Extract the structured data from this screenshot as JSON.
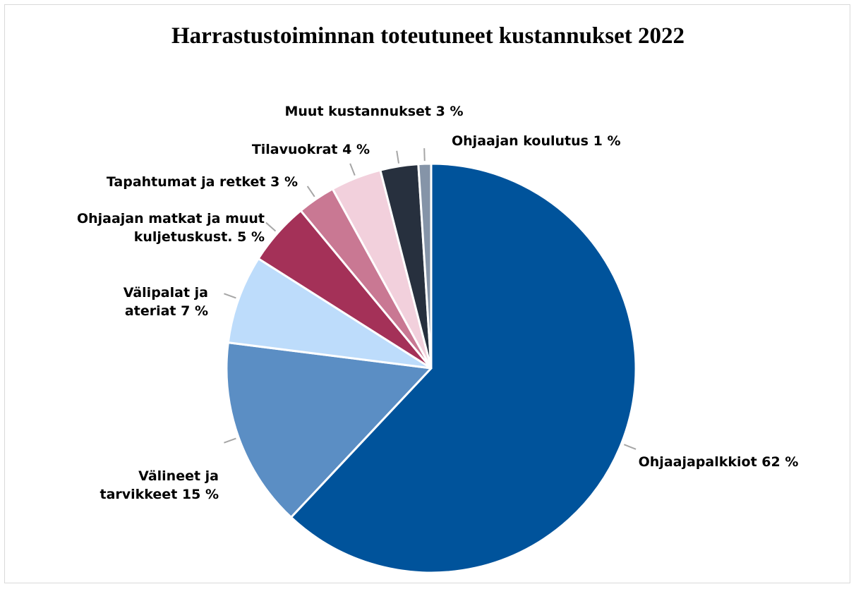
{
  "chart_data": {
    "type": "pie",
    "title": "Harrastustoiminnan toteutuneet kustannukset 2022",
    "categories": [
      "Ohjaajapalkkiot",
      "Välineet ja tarvikkeet",
      "Välipalat ja ateriat",
      "Ohjaajan matkat ja muut kuljetuskust.",
      "Tapahtumat ja retket",
      "Tilavuokrat",
      "Muut kustannukset",
      "Ohjaajan koulutus"
    ],
    "values": [
      62,
      15,
      7,
      5,
      3,
      4,
      3,
      1
    ],
    "value_labels": [
      "62 %",
      "15 %",
      "7 %",
      "5 %",
      "3 %",
      "4 %",
      "3 %",
      "1 %"
    ],
    "colors": [
      "#00539b",
      "#5b8ec4",
      "#bddcfb",
      "#a43158",
      "#c97893",
      "#f2d0dc",
      "#27303e",
      "#8594a8"
    ]
  }
}
